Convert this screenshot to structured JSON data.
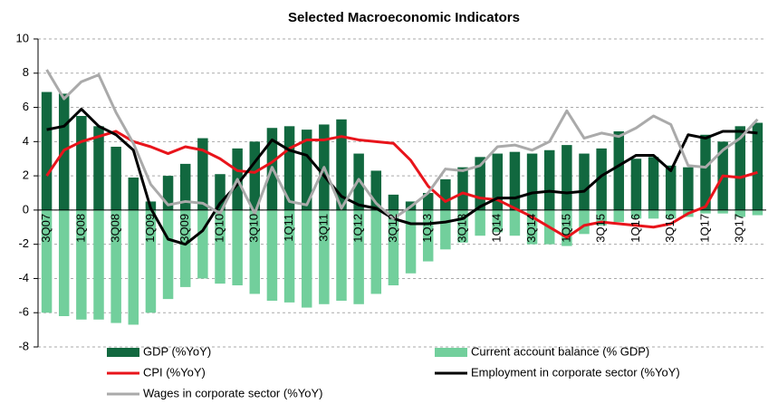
{
  "chart_data": {
    "type": "bar_line",
    "title": "Selected Macroeconomic Indicators",
    "categories": [
      "3Q07",
      null,
      "1Q08",
      null,
      "3Q08",
      null,
      "1Q09",
      null,
      "3Q09",
      null,
      "1Q10",
      null,
      "3Q10",
      null,
      "1Q11",
      null,
      "3Q11",
      null,
      "1Q12",
      null,
      "3Q12",
      null,
      "1Q13",
      null,
      "3Q13",
      null,
      "1Q14",
      null,
      "3Q14",
      null,
      "1Q15",
      null,
      "3Q15",
      null,
      "1Q16",
      null,
      "3Q16",
      null,
      "1Q17",
      null,
      "3Q17",
      null
    ],
    "series": [
      {
        "name": "GDP (%YoY)",
        "kind": "bar",
        "color": "#11683f",
        "values": [
          6.9,
          6.8,
          5.5,
          4.9,
          3.7,
          1.9,
          0.5,
          2.0,
          2.7,
          4.2,
          2.1,
          3.6,
          4.0,
          4.8,
          4.9,
          4.7,
          5.0,
          5.3,
          3.3,
          2.3,
          0.9,
          0.5,
          1.0,
          1.8,
          2.5,
          3.1,
          3.3,
          3.4,
          3.3,
          3.5,
          3.8,
          3.3,
          3.6,
          4.6,
          3.0,
          3.1,
          2.6,
          2.5,
          4.4,
          4.0,
          4.9,
          5.1
        ]
      },
      {
        "name": "Current account balance (% GDP)",
        "kind": "bar",
        "color": "#72cf9c",
        "values": [
          -6.0,
          -6.2,
          -6.4,
          -6.4,
          -6.6,
          -6.7,
          -6.0,
          -5.2,
          -4.5,
          -4.0,
          -4.3,
          -4.4,
          -4.9,
          -5.3,
          -5.4,
          -5.7,
          -5.5,
          -5.3,
          -5.5,
          -4.9,
          -4.4,
          -3.7,
          -3.0,
          -2.3,
          -1.9,
          -1.5,
          -1.3,
          -1.5,
          -2.0,
          -2.0,
          -2.1,
          -1.4,
          -0.9,
          -0.7,
          -0.5,
          -0.5,
          -0.5,
          -0.4,
          -0.2,
          -0.2,
          -0.4,
          -0.3
        ]
      },
      {
        "name": "CPI (%YoY)",
        "kind": "line",
        "color": "#e8141b",
        "values": [
          2.0,
          3.5,
          4.0,
          4.3,
          4.6,
          4.0,
          3.7,
          3.3,
          3.7,
          3.5,
          3.0,
          2.3,
          2.2,
          2.8,
          3.6,
          4.1,
          4.1,
          4.3,
          4.1,
          4.0,
          3.9,
          2.9,
          1.4,
          0.5,
          1.0,
          0.7,
          0.6,
          0.1,
          -0.4,
          -1.0,
          -1.6,
          -0.9,
          -0.7,
          -0.8,
          -0.9,
          -1.0,
          -0.8,
          -0.2,
          0.2,
          2.0,
          1.9,
          2.2
        ]
      },
      {
        "name": "Employment in corporate sector (%YoY)",
        "kind": "line",
        "color": "#000000",
        "values": [
          4.7,
          4.9,
          5.9,
          4.9,
          4.4,
          3.5,
          0.1,
          -1.7,
          -2.0,
          -1.2,
          0.4,
          1.5,
          2.8,
          4.1,
          3.5,
          3.2,
          2.0,
          0.8,
          0.3,
          0.1,
          -0.5,
          -0.8,
          -0.8,
          -0.7,
          -0.5,
          0.2,
          0.7,
          0.7,
          1.0,
          1.1,
          1.0,
          1.1,
          2.0,
          2.6,
          3.2,
          3.2,
          2.3,
          4.4,
          4.2,
          4.6,
          4.6,
          4.5
        ]
      },
      {
        "name": "Wages in corporate sector (%YoY)",
        "kind": "line",
        "color": "#aaaaaa",
        "values": [
          8.2,
          6.5,
          7.5,
          7.9,
          5.7,
          3.9,
          1.5,
          0.3,
          0.5,
          0.4,
          -0.2,
          1.8,
          -0.2,
          2.5,
          0.5,
          0.3,
          2.5,
          0.1,
          1.8,
          0.4,
          -0.5,
          0.2,
          1.0,
          2.4,
          2.3,
          2.6,
          3.7,
          3.8,
          3.5,
          4.0,
          5.8,
          4.2,
          4.5,
          4.3,
          4.8,
          5.5,
          5.0,
          2.6,
          2.5,
          3.5,
          4.2,
          5.3
        ]
      }
    ],
    "ylim": [
      -8,
      10
    ],
    "yticks": [
      -8,
      -6,
      -4,
      -2,
      0,
      2,
      4,
      6,
      8,
      10
    ],
    "grid": true,
    "legend": "bottom"
  }
}
